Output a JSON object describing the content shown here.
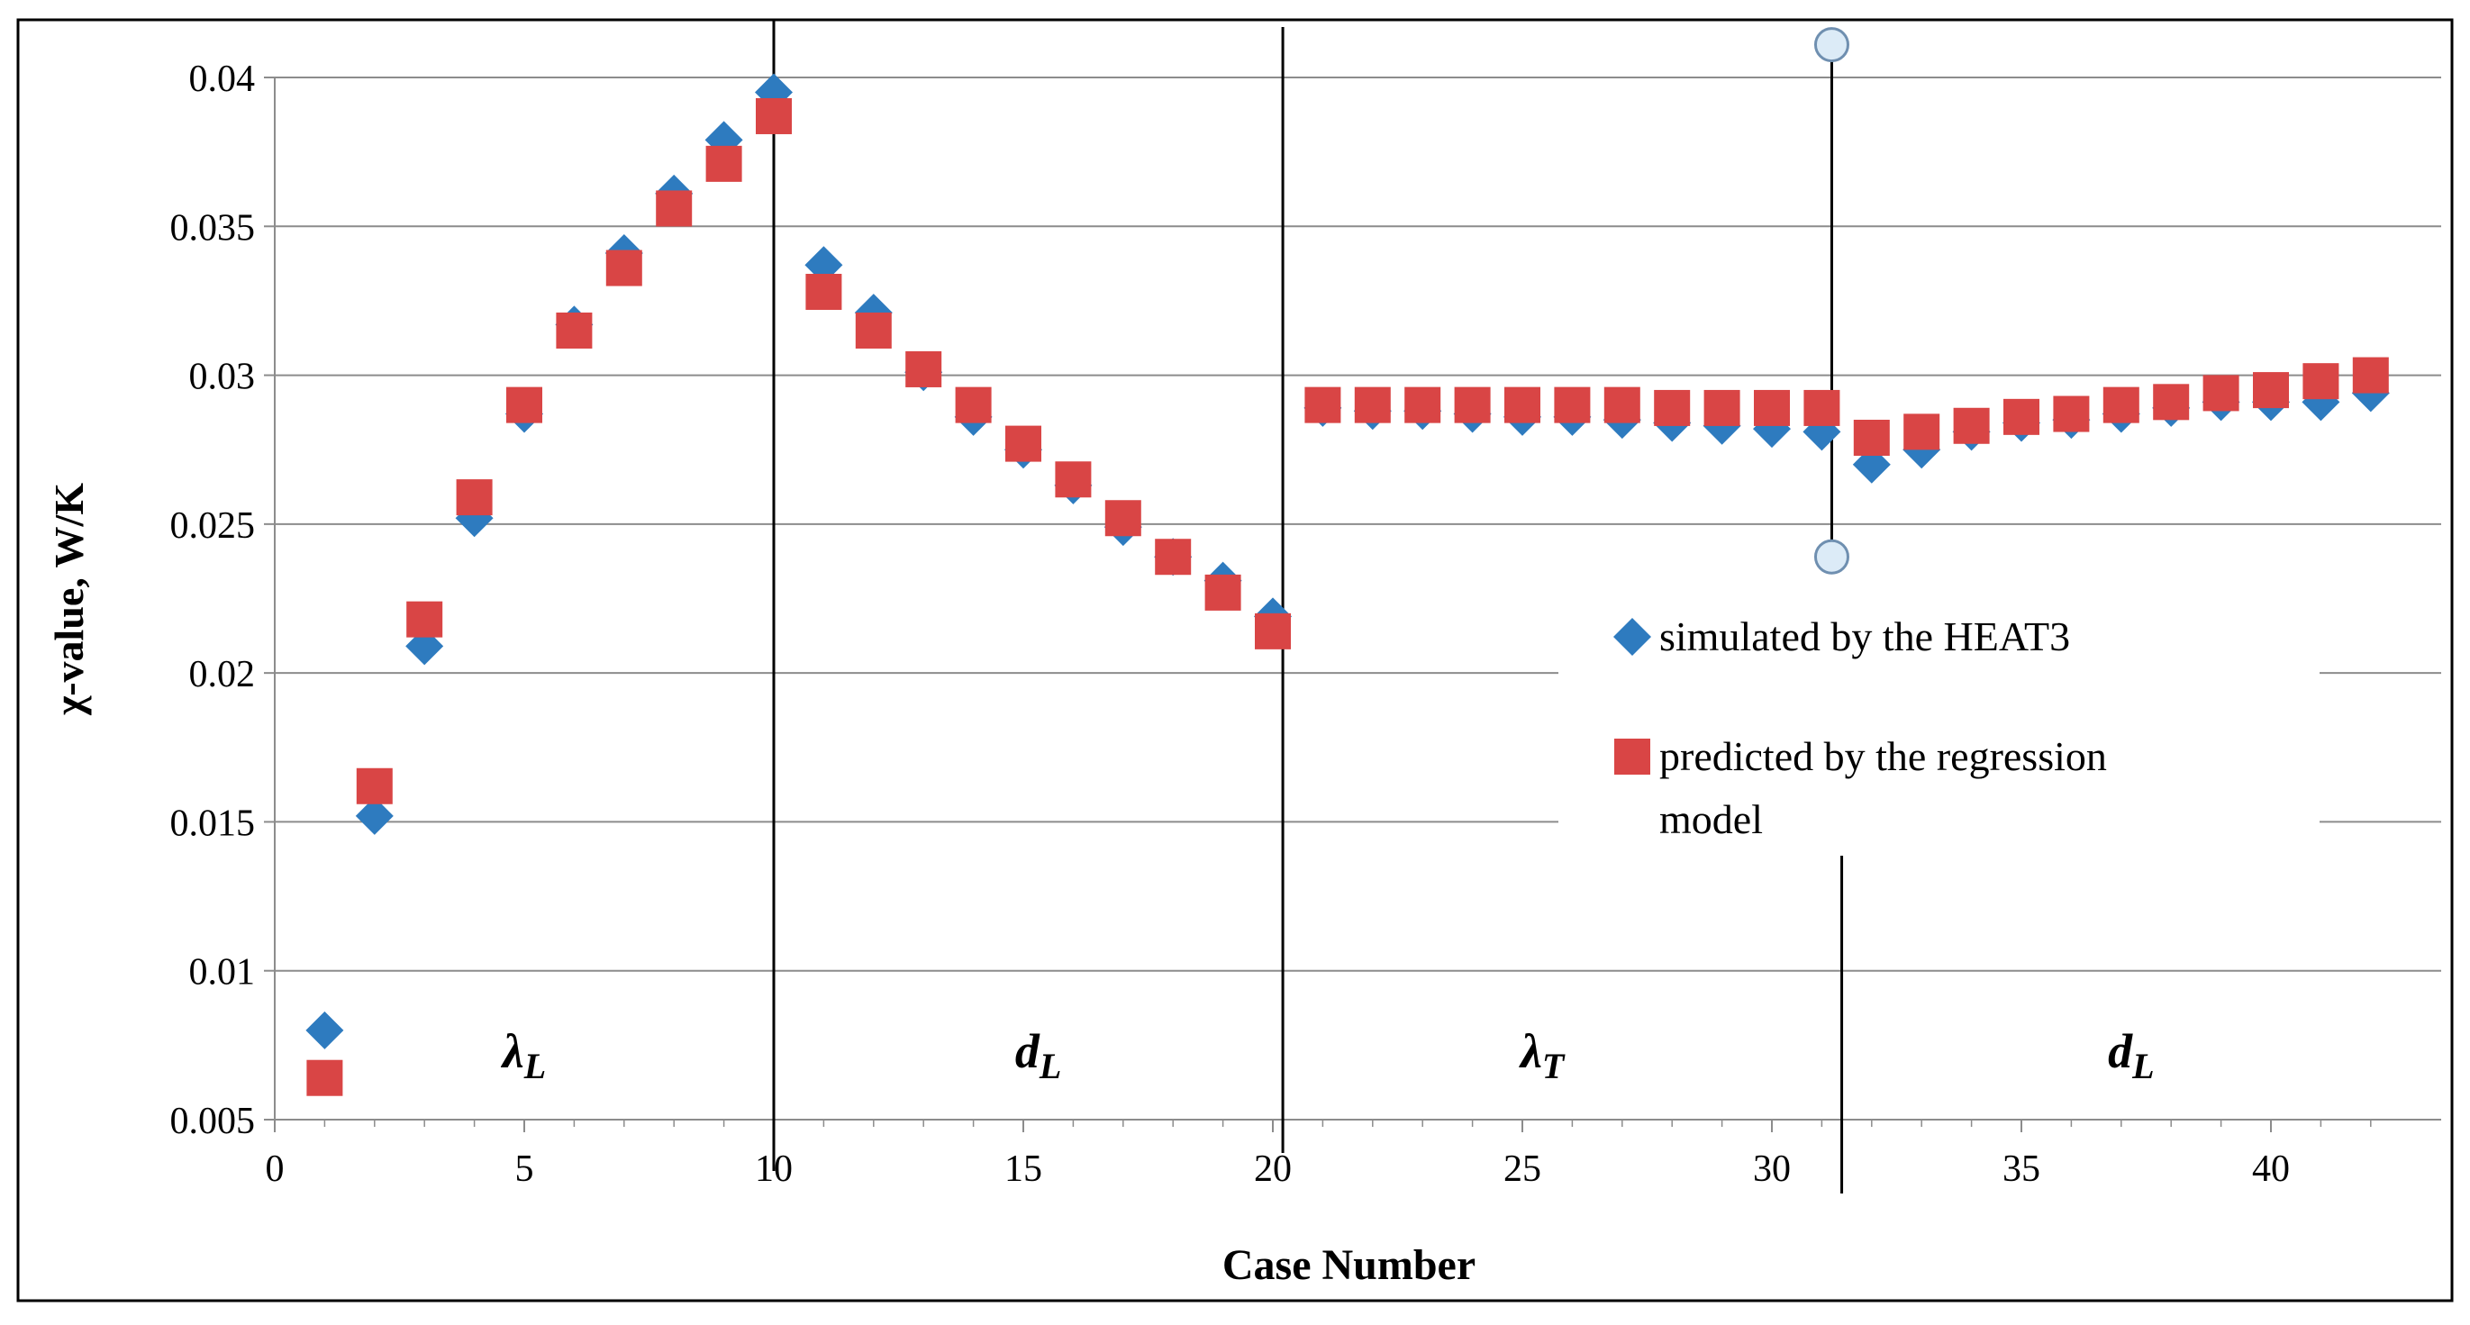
{
  "chart_data": {
    "type": "scatter",
    "title": "",
    "xlabel": "Case Number",
    "ylabel": "χ-value,  W/K",
    "xlim": [
      0,
      43
    ],
    "ylim": [
      0.005,
      0.04
    ],
    "x_ticks": [
      0,
      5,
      10,
      15,
      20,
      25,
      30,
      35,
      40
    ],
    "y_ticks": [
      0.005,
      0.01,
      0.015,
      0.02,
      0.025,
      0.03,
      0.035,
      0.04
    ],
    "x_tick_labels": [
      "0",
      "5",
      "10",
      "15",
      "20",
      "25",
      "30",
      "35",
      "40"
    ],
    "y_tick_labels": [
      "0.005",
      "0.01",
      "0.015",
      "0.02",
      "0.025",
      "0.03",
      "0.035",
      "0.04"
    ],
    "grid": "horizontal",
    "legend_position": "center-right",
    "series": [
      {
        "name": "simulated by the HEAT3",
        "marker": "diamond",
        "color": "#2e7bbf",
        "x": [
          1,
          2,
          3,
          4,
          5,
          6,
          7,
          8,
          9,
          10,
          11,
          12,
          13,
          14,
          15,
          16,
          17,
          18,
          19,
          20,
          21,
          22,
          23,
          24,
          25,
          26,
          27,
          28,
          29,
          30,
          31,
          32,
          33,
          34,
          35,
          36,
          37,
          38,
          39,
          40,
          41,
          42
        ],
        "values": [
          0.008,
          0.0152,
          0.0209,
          0.0252,
          0.0287,
          0.0317,
          0.0341,
          0.0361,
          0.0379,
          0.0395,
          0.0337,
          0.0321,
          0.0301,
          0.0286,
          0.0275,
          0.0263,
          0.0249,
          0.0239,
          0.0231,
          0.0219,
          0.0289,
          0.0288,
          0.0288,
          0.0287,
          0.0286,
          0.0286,
          0.0285,
          0.0284,
          0.0283,
          0.0282,
          0.0281,
          0.027,
          0.0275,
          0.0281,
          0.0284,
          0.0285,
          0.0287,
          0.0289,
          0.0291,
          0.0291,
          0.0291,
          0.0294
        ]
      },
      {
        "name": "predicted by the regression model",
        "legend_lines": [
          "predicted by the regression",
          "model"
        ],
        "marker": "square",
        "color": "#d94545",
        "x": [
          1,
          2,
          3,
          4,
          5,
          6,
          7,
          8,
          9,
          10,
          11,
          12,
          13,
          14,
          15,
          16,
          17,
          18,
          19,
          20,
          21,
          22,
          23,
          24,
          25,
          26,
          27,
          28,
          29,
          30,
          31,
          32,
          33,
          34,
          35,
          36,
          37,
          38,
          39,
          40,
          41,
          42
        ],
        "values": [
          0.0064,
          0.0162,
          0.0218,
          0.0259,
          0.029,
          0.0315,
          0.0336,
          0.0356,
          0.0371,
          0.0387,
          0.0328,
          0.0315,
          0.0302,
          0.029,
          0.0277,
          0.0265,
          0.0252,
          0.0239,
          0.0227,
          0.0214,
          0.029,
          0.029,
          0.029,
          0.029,
          0.029,
          0.029,
          0.029,
          0.0289,
          0.0289,
          0.0289,
          0.0289,
          0.0279,
          0.0281,
          0.0283,
          0.0286,
          0.0287,
          0.029,
          0.0291,
          0.0294,
          0.0295,
          0.0298,
          0.03
        ]
      }
    ],
    "dividers": [
      10,
      20.2,
      31.4
    ],
    "regions": [
      {
        "symbol": "λ",
        "subscript": "L",
        "x_center": 5
      },
      {
        "symbol": "d",
        "subscript": "L",
        "x_center": 15.3
      },
      {
        "symbol": "λ",
        "subscript": "T",
        "x_center": 25.4
      },
      {
        "symbol": "d",
        "subscript": "L",
        "x_center": 37.2
      }
    ],
    "annotations": [
      {
        "type": "error-range",
        "x": 31.2,
        "y_high": 0.0411,
        "y_low": 0.0239
      }
    ]
  }
}
